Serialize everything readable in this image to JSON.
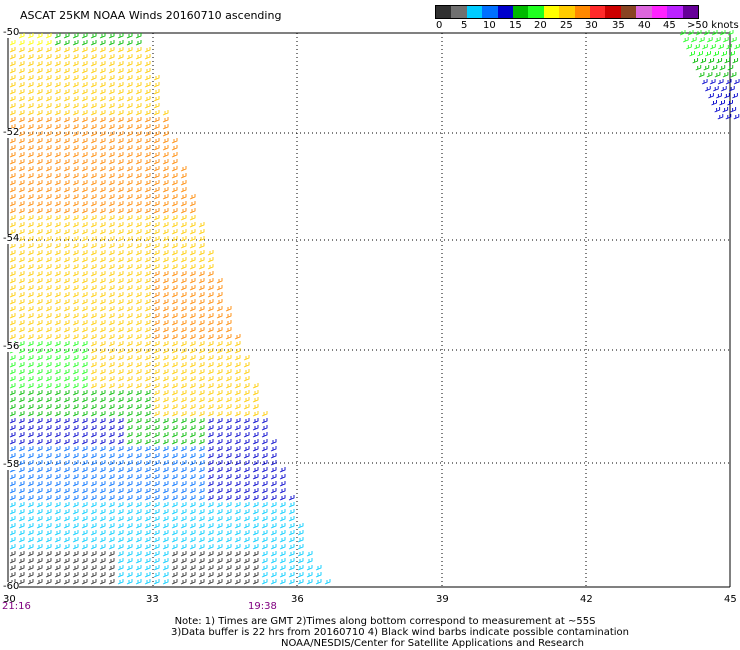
{
  "title": "ASCAT 25KM NOAA Winds 20160710 ascending",
  "legend": {
    "colors": [
      "#303030",
      "#707070",
      "#00ccff",
      "#0070ff",
      "#0000cc",
      "#00bb00",
      "#20ff20",
      "#ffff00",
      "#ffcc00",
      "#ff8800",
      "#ff2a2a",
      "#cc0000",
      "#884422",
      "#dd66dd",
      "#ff22ff",
      "#bb22ff",
      "#660099"
    ],
    "labels": [
      "0",
      "5",
      "10",
      "15",
      "20",
      "25",
      "30",
      "35",
      "40",
      "45",
      ">50 knots"
    ]
  },
  "map": {
    "lat_labels": [
      "-50",
      "-52",
      "-54",
      "-56",
      "-58",
      "-60"
    ],
    "lon_labels": [
      "30",
      "33",
      "36",
      "39",
      "42",
      "45"
    ]
  },
  "times": {
    "left": "21:16",
    "middle": "19:38"
  },
  "notes": [
    "Note: 1) Times are GMT 2)Times along bottom correspond to measurement at ~55S",
    "3)Data buffer is 22 hrs from 20160710 4) Black wind barbs indicate possible contamination",
    "NOAA/NESDIS/Center for Satellite Applications and Research"
  ]
}
